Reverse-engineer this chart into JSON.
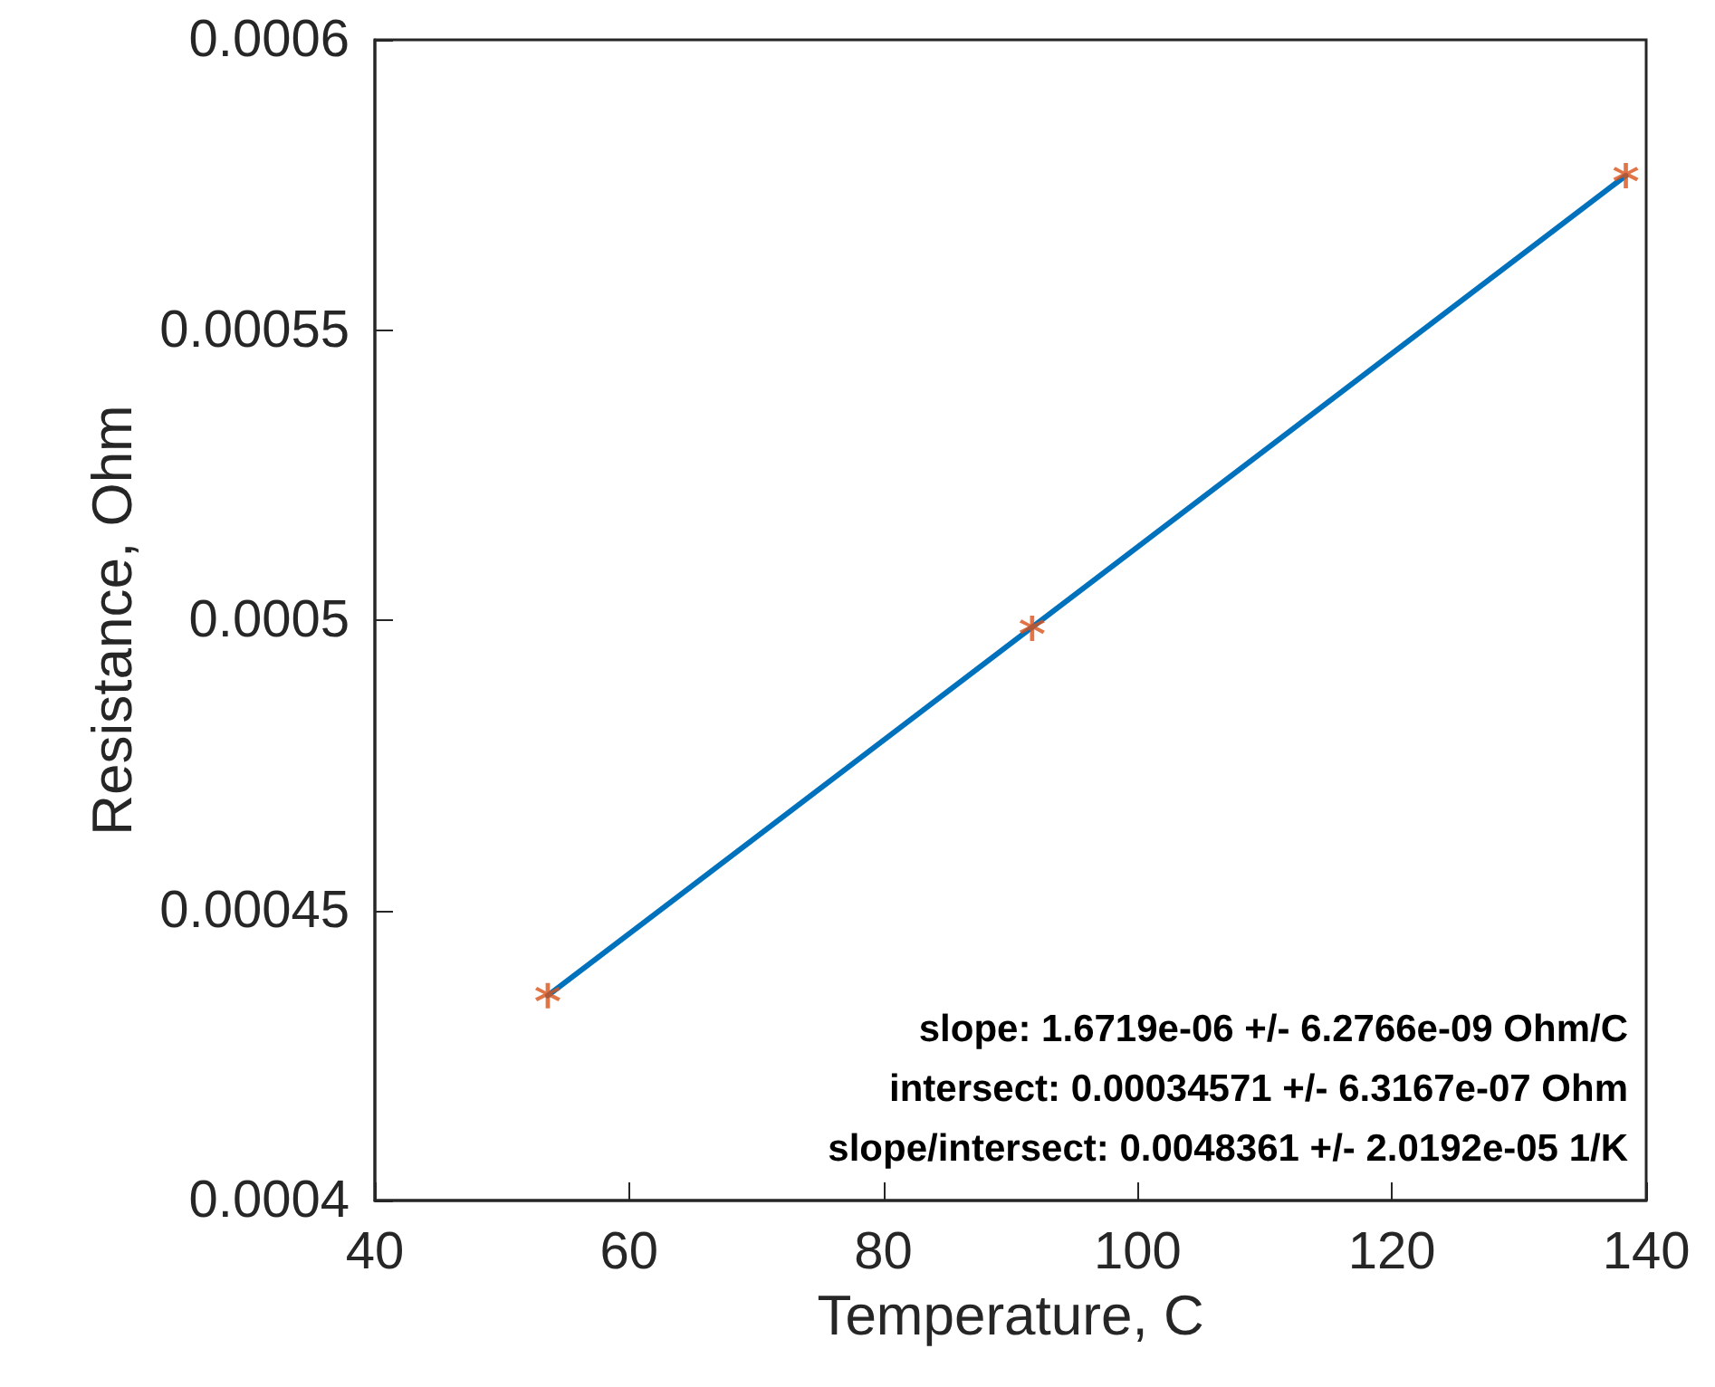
{
  "chart_data": {
    "type": "scatter",
    "xlabel": "Temperature, C",
    "ylabel": "Resistance, Ohm",
    "series": [
      {
        "color": "#d95319",
        "marker": "star",
        "x": [
          53.6,
          91.7,
          138.4
        ],
        "values": [
          0.0004353,
          0.0004986,
          0.0005766
        ]
      },
      {
        "type": "line",
        "color": "#0072bd",
        "line_style": "solid",
        "x": [
          53.6,
          138.4
        ],
        "values": [
          0.0004353,
          0.0005766
        ]
      }
    ],
    "xlim": [
      40,
      140
    ],
    "xticks": [
      40,
      60,
      80,
      100,
      120,
      140
    ],
    "ylim": [
      0.0004,
      0.0006
    ],
    "yticks": [
      0.0004,
      0.00045,
      0.0005,
      0.00055,
      0.0006
    ],
    "annotations": [
      "slope: 1.6719e-06 +/- 6.2766e-09 Ohm/C",
      "intersect: 0.00034571 +/- 6.3167e-07 Ohm",
      "slope/intersect: 0.0048361 +/- 2.0192e-05 1/K"
    ],
    "grid": false
  }
}
